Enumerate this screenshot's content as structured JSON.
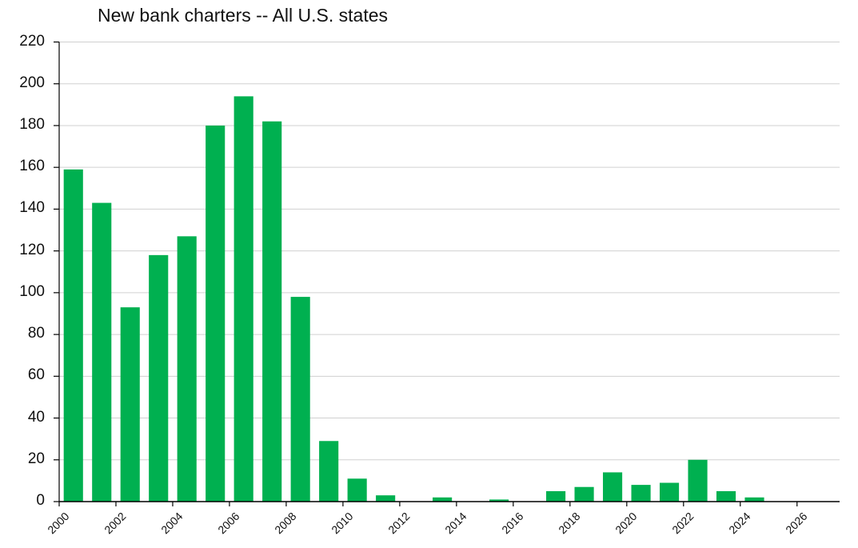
{
  "chart_data": {
    "type": "bar",
    "title": "New bank charters -- All U.S. states",
    "xlabel": "",
    "ylabel": "",
    "categories": [
      "2000",
      "2001",
      "2002",
      "2003",
      "2004",
      "2005",
      "2006",
      "2007",
      "2008",
      "2009",
      "2010",
      "2011",
      "2012",
      "2013",
      "2014",
      "2015",
      "2016",
      "2017",
      "2018",
      "2019",
      "2020",
      "2021",
      "2022",
      "2023",
      "2024"
    ],
    "values": [
      159,
      143,
      93,
      118,
      127,
      180,
      194,
      182,
      98,
      29,
      11,
      3,
      0,
      2,
      0,
      1,
      0,
      5,
      7,
      14,
      8,
      9,
      20,
      5,
      2
    ],
    "ylim": [
      0,
      220
    ],
    "yticks": [
      0,
      20,
      40,
      60,
      80,
      100,
      120,
      140,
      160,
      180,
      200,
      220
    ],
    "xlim": [
      2000,
      2027.5
    ],
    "xticks": [
      "2000",
      "2002",
      "2004",
      "2006",
      "2008",
      "2010",
      "2012",
      "2014",
      "2016",
      "2018",
      "2020",
      "2022",
      "2024",
      "2026"
    ],
    "grid": "horizontal",
    "legend": "none",
    "colors": {
      "bar": "#00B050",
      "grid": "#d0d0d0",
      "axis": "#000000"
    }
  }
}
